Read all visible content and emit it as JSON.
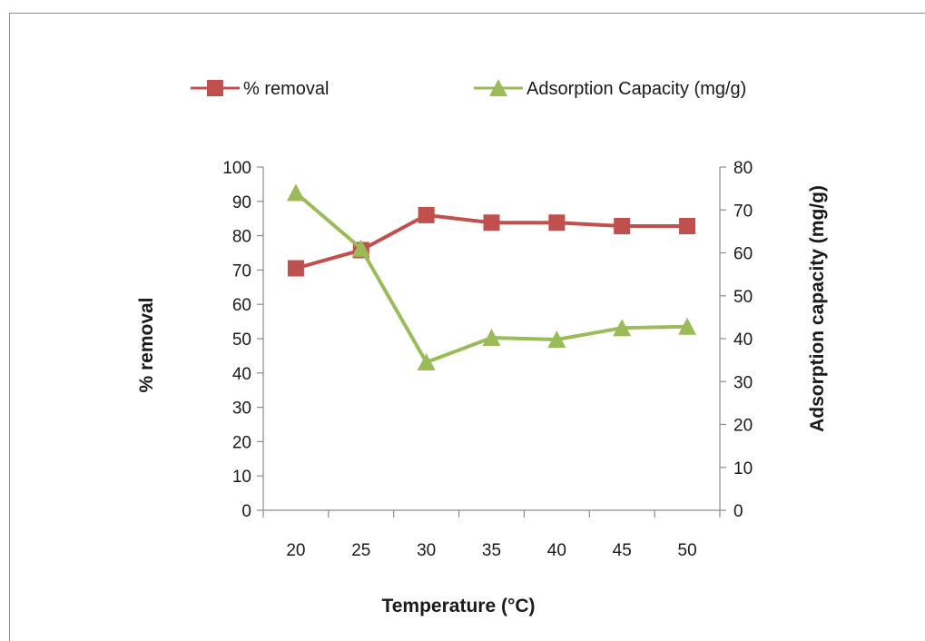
{
  "chart_data": {
    "type": "line",
    "x": [
      20,
      25,
      30,
      35,
      40,
      45,
      50
    ],
    "xlabel": "Temperature (°C)",
    "ylabel_left": "% removal",
    "ylabel_right": "Adsorption capacity (mg/g)",
    "ylim_left": [
      0,
      100
    ],
    "ylim_right": [
      0,
      80
    ],
    "yticks_left": [
      0,
      10,
      20,
      30,
      40,
      50,
      60,
      70,
      80,
      90,
      100
    ],
    "yticks_right": [
      0,
      10,
      20,
      30,
      40,
      50,
      60,
      70,
      80
    ],
    "grid": false,
    "legend_position": "top",
    "series": [
      {
        "name": "% removal",
        "axis": "left",
        "marker": "square",
        "color": "#c0504d",
        "values": [
          70.5,
          75.8,
          86.0,
          83.8,
          83.8,
          82.8,
          82.8
        ]
      },
      {
        "name": "Adsorption Capacity (mg/g)",
        "axis": "right",
        "marker": "triangle",
        "color": "#9bbb59",
        "values": [
          74.0,
          61.0,
          34.5,
          40.2,
          39.8,
          42.5,
          42.8
        ]
      }
    ]
  }
}
